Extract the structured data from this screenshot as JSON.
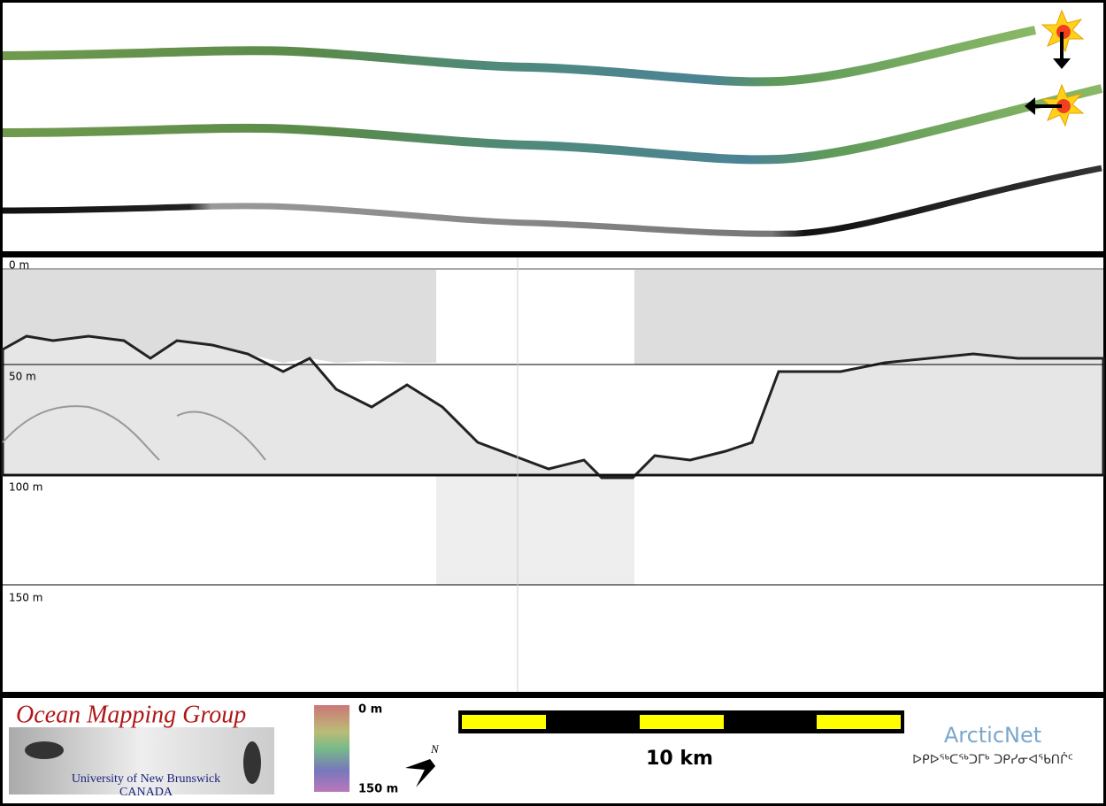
{
  "profile": {
    "depth_labels": [
      "0 m",
      "50 m",
      "100 m",
      "150 m"
    ]
  },
  "footer": {
    "logo_title": "Ocean Mapping Group",
    "logo_university": "University of New Brunswick",
    "logo_country": "CANADA",
    "colorbar_top": "0 m",
    "colorbar_bottom": "150 m",
    "compass": "N",
    "scale_label": "10 km",
    "partner": "ArcticNet",
    "partner_syllabics": "ᐅᑭᐅᖅᑕᖅᑐᒥᒃ ᑐᑭᓯᓂᐊᖃᑎᒌᑦ"
  }
}
